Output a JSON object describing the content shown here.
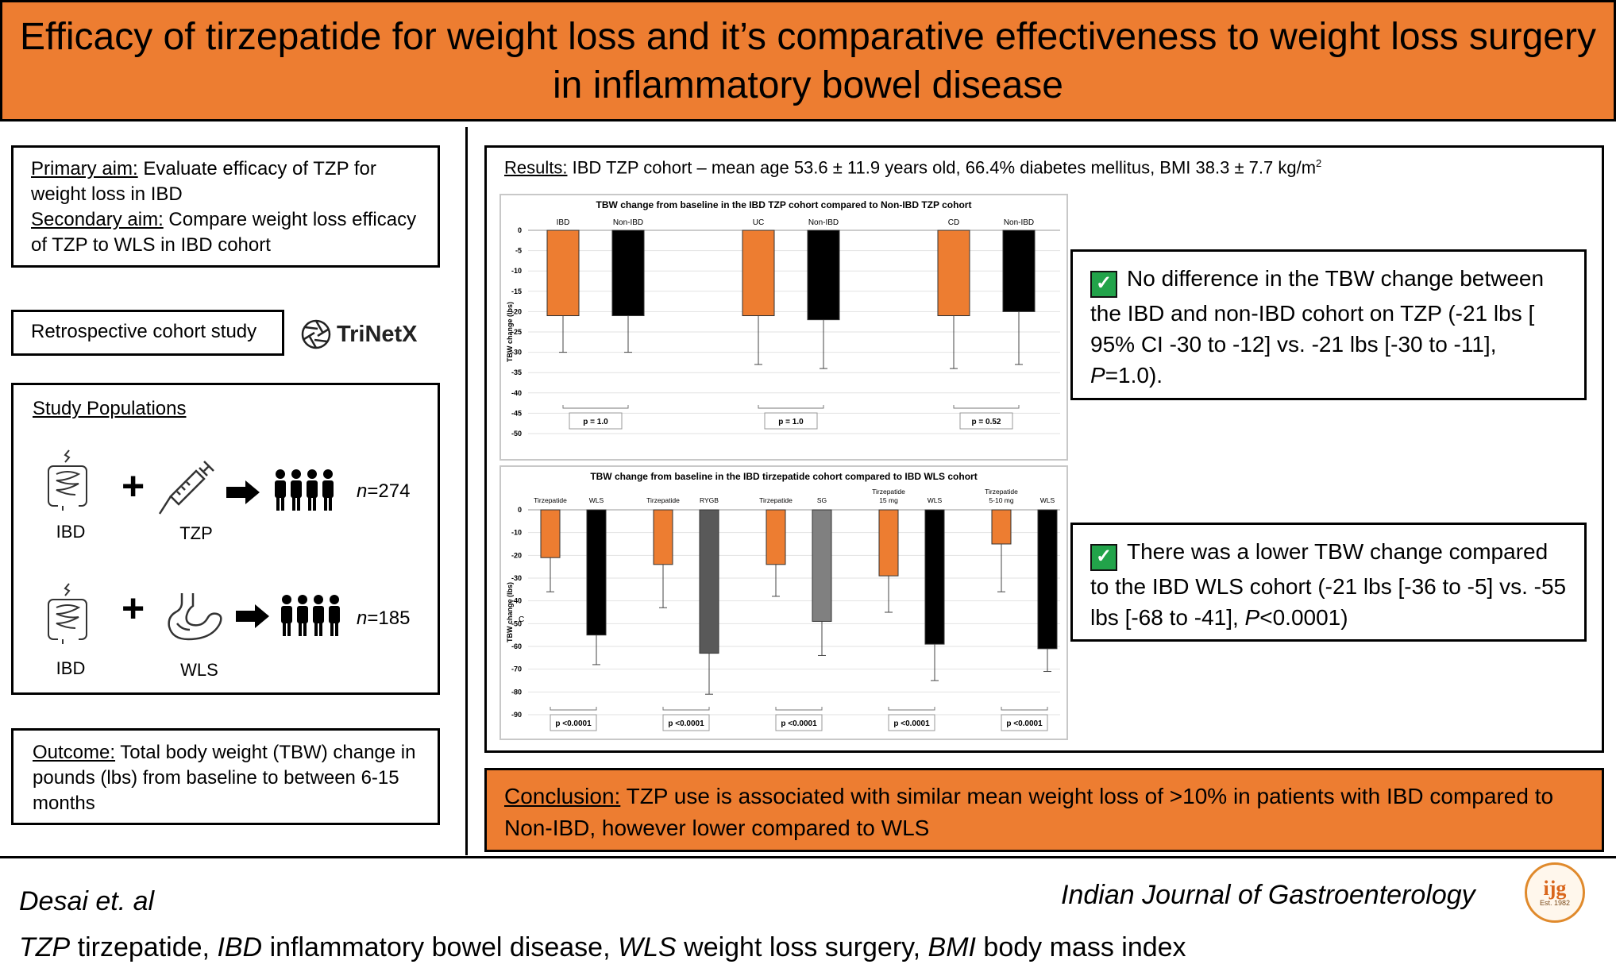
{
  "title": "Efficacy of tirzepatide for weight loss and it’s comparative effectiveness to weight loss surgery in inflammatory bowel disease",
  "aims": {
    "primary_label": "Primary aim:",
    "primary_text": " Evaluate efficacy of TZP for weight loss in IBD",
    "secondary_label": "Secondary aim:",
    "secondary_text": " Compare weight loss efficacy of TZP to WLS in IBD cohort"
  },
  "study_design": "Retrospective cohort study",
  "logo_text": "TriNetX",
  "populations": {
    "heading": "Study Populations",
    "rows": [
      {
        "left": "IBD",
        "right": "TZP",
        "n_prefix": "n",
        "n_value": "=274"
      },
      {
        "left": "IBD",
        "right": "WLS",
        "n_prefix": "n",
        "n_value": "=185"
      }
    ]
  },
  "outcome": {
    "label": "Outcome:",
    "text": " Total body weight (TBW) change in pounds (lbs) from baseline to between 6-15 months"
  },
  "results": {
    "label": "Results:",
    "text": " IBD TZP cohort – mean age 53.6 ± 11.9 years old, 66.4% diabetes mellitus, BMI 38.3 ± 7.7 kg/m",
    "sup": "2"
  },
  "findings": [
    {
      "text": "No difference in the TBW change between the IBD and non-IBD cohort on TZP (-21 lbs [ 95% CI -30 to -12] vs. -21 lbs [-30 to -11], ",
      "p_italic": "P",
      "p_rest": "=1.0)."
    },
    {
      "text": "There was a lower TBW change compared to the IBD WLS cohort (-21 lbs [-36 to -5] vs. -55 lbs [-68 to -41], ",
      "p_italic": "P",
      "p_rest": "<0.0001)"
    }
  ],
  "conclusion": {
    "label": "Conclusion:",
    "text": " TZP use is associated with similar mean weight loss of >10% in patients with IBD compared to Non-IBD, however lower compared to WLS"
  },
  "footer": {
    "authors": "Desai et. al",
    "journal": "Indian Journal of Gastroenterology",
    "abbrev": [
      {
        "abbr": "TZP",
        "def": " tirzepatide, "
      },
      {
        "abbr": "IBD",
        "def": " inflammatory bowel disease, "
      },
      {
        "abbr": "WLS",
        "def": " weight loss surgery, "
      },
      {
        "abbr": "BMI",
        "def": " body mass index"
      }
    ],
    "seal_text": "ijg",
    "seal_est": "Est. 1982"
  },
  "colors": {
    "orange": "#ED7D31",
    "black": "#000000",
    "dark_gray": "#595959",
    "gray": "#808080"
  },
  "chart_data": [
    {
      "type": "bar",
      "title": "TBW change from baseline in the IBD TZP cohort compared to Non-IBD TZP cohort",
      "ylabel": "TBW change (lbs)",
      "ylim": [
        -50,
        0
      ],
      "yticks": [
        0,
        -5,
        -10,
        -15,
        -20,
        -25,
        -30,
        -35,
        -40,
        -45,
        -50
      ],
      "bars": [
        {
          "label": "IBD",
          "value": -21,
          "low": -30,
          "color": "#ED7D31"
        },
        {
          "label": "Non-IBD",
          "value": -21,
          "low": -30,
          "color": "#000000"
        },
        {
          "label": "UC",
          "value": -21,
          "low": -33,
          "color": "#ED7D31"
        },
        {
          "label": "Non-IBD",
          "value": -22,
          "low": -34,
          "color": "#000000"
        },
        {
          "label": "CD",
          "value": -21,
          "low": -34,
          "color": "#ED7D31"
        },
        {
          "label": "Non-IBD",
          "value": -20,
          "low": -33,
          "color": "#000000"
        }
      ],
      "comparisons": [
        "p = 1.0",
        "p = 1.0",
        "p = 0.52"
      ]
    },
    {
      "type": "bar",
      "title": "TBW change from baseline in the IBD tirzepatide cohort compared to IBD WLS cohort",
      "ylabel": "TBW change (lbs)",
      "ylim": [
        -90,
        0
      ],
      "yticks": [
        0,
        -10,
        -20,
        -30,
        -40,
        -50,
        -60,
        -70,
        -80,
        -90
      ],
      "stray_text": "C",
      "bars": [
        {
          "label": "Tirzepatide",
          "value": -21,
          "low": -36,
          "color": "#ED7D31"
        },
        {
          "label": "WLS",
          "value": -55,
          "low": -68,
          "color": "#000000"
        },
        {
          "label": "Tirzepatide",
          "value": -24,
          "low": -43,
          "color": "#ED7D31"
        },
        {
          "label": "RYGB",
          "value": -63,
          "low": -81,
          "color": "#595959"
        },
        {
          "label": "Tirzepatide",
          "value": -24,
          "low": -38,
          "color": "#ED7D31"
        },
        {
          "label": "SG",
          "value": -49,
          "low": -64,
          "color": "#808080"
        },
        {
          "label": "Tirzepatide 15 mg",
          "value": -29,
          "low": -45,
          "color": "#ED7D31"
        },
        {
          "label": "WLS",
          "value": -59,
          "low": -75,
          "color": "#000000"
        },
        {
          "label": "Tirzepatide 5-10 mg",
          "value": -15,
          "low": -36,
          "color": "#ED7D31"
        },
        {
          "label": "WLS",
          "value": -61,
          "low": -71,
          "color": "#000000"
        }
      ],
      "comparisons": [
        "p <0.0001",
        "p <0.0001",
        "p <0.0001",
        "p <0.0001",
        "p <0.0001"
      ]
    }
  ]
}
